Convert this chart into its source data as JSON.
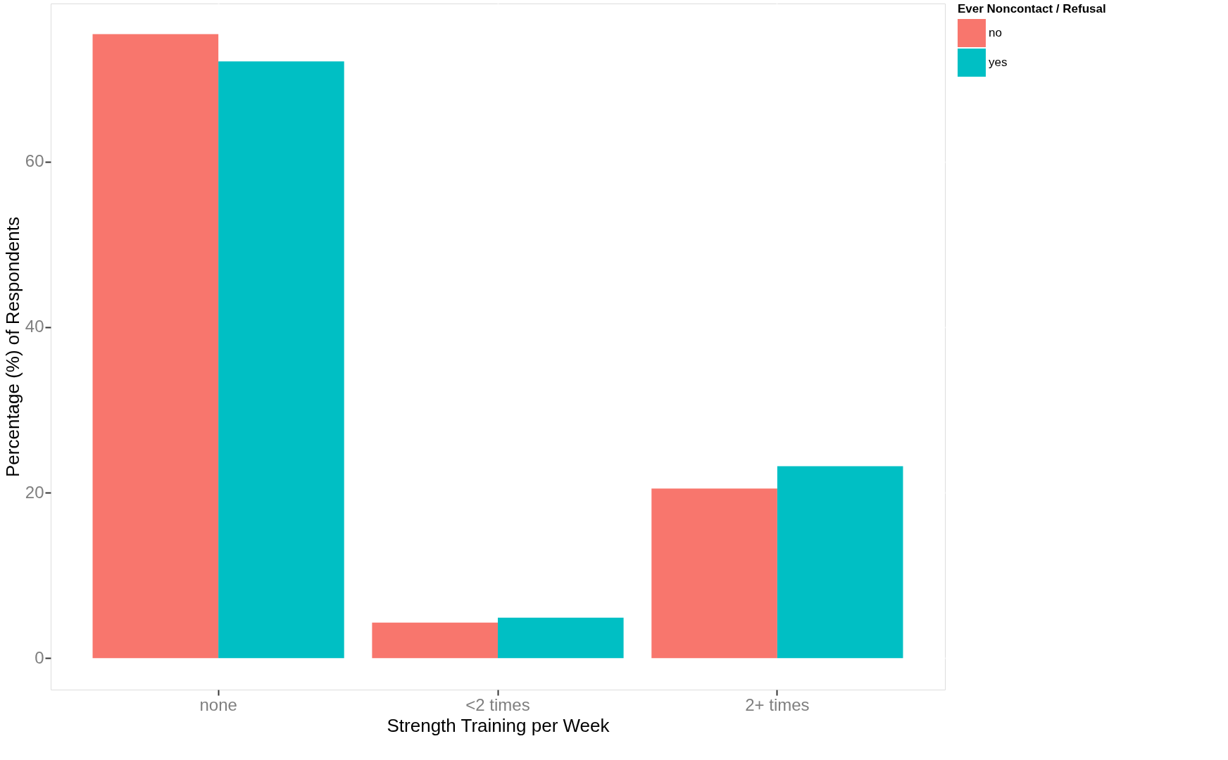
{
  "chart_data": {
    "type": "bar",
    "xlabel": "Strength Training per Week",
    "ylabel": "Percentage (%) of Respondents",
    "legend_title": "Ever Noncontact / Refusal",
    "categories": [
      "none",
      "<2 times",
      "2+ times"
    ],
    "series": [
      {
        "name": "no",
        "color": "#f8766d",
        "values": [
          75.4,
          4.3,
          20.5
        ]
      },
      {
        "name": "yes",
        "color": "#00bfc4",
        "values": [
          72.1,
          4.9,
          23.2
        ]
      }
    ],
    "ylim": [
      -3.8,
      79.1
    ],
    "yticks": [
      0,
      20,
      40,
      60
    ],
    "grid": true,
    "legend": "right"
  }
}
